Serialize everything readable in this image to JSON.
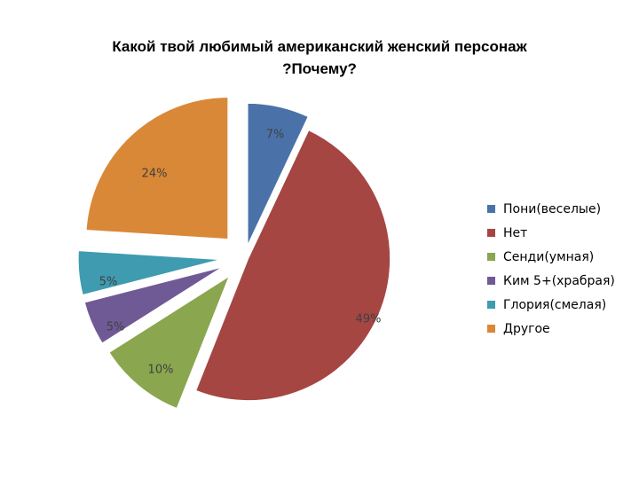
{
  "chart_data": {
    "type": "pie",
    "title": "Какой твой любимый американский женский персонаж ?Почему?",
    "title_lines": [
      "Какой твой любимый американский женский персонаж",
      "?Почему?"
    ],
    "exploded": true,
    "start_angle_deg": 0,
    "direction": "clockwise",
    "slices": [
      {
        "label": "Пони(веселые)",
        "value": 7,
        "display": "7%",
        "color": "#4a72a8"
      },
      {
        "label": "Нет",
        "value": 49,
        "display": "49%",
        "color": "#a54643"
      },
      {
        "label": "Сенди(умная)",
        "value": 10,
        "display": "10%",
        "color": "#8aa64e"
      },
      {
        "label": "Ким 5+(храбрая)",
        "value": 5,
        "display": "5%",
        "color": "#6f5a95"
      },
      {
        "label": "Глория(смелая)",
        "value": 5,
        "display": "5%",
        "color": "#3f9bb0"
      },
      {
        "label": "Другое",
        "value": 24,
        "display": "24%",
        "color": "#d98838"
      }
    ],
    "legend_position": "right"
  }
}
